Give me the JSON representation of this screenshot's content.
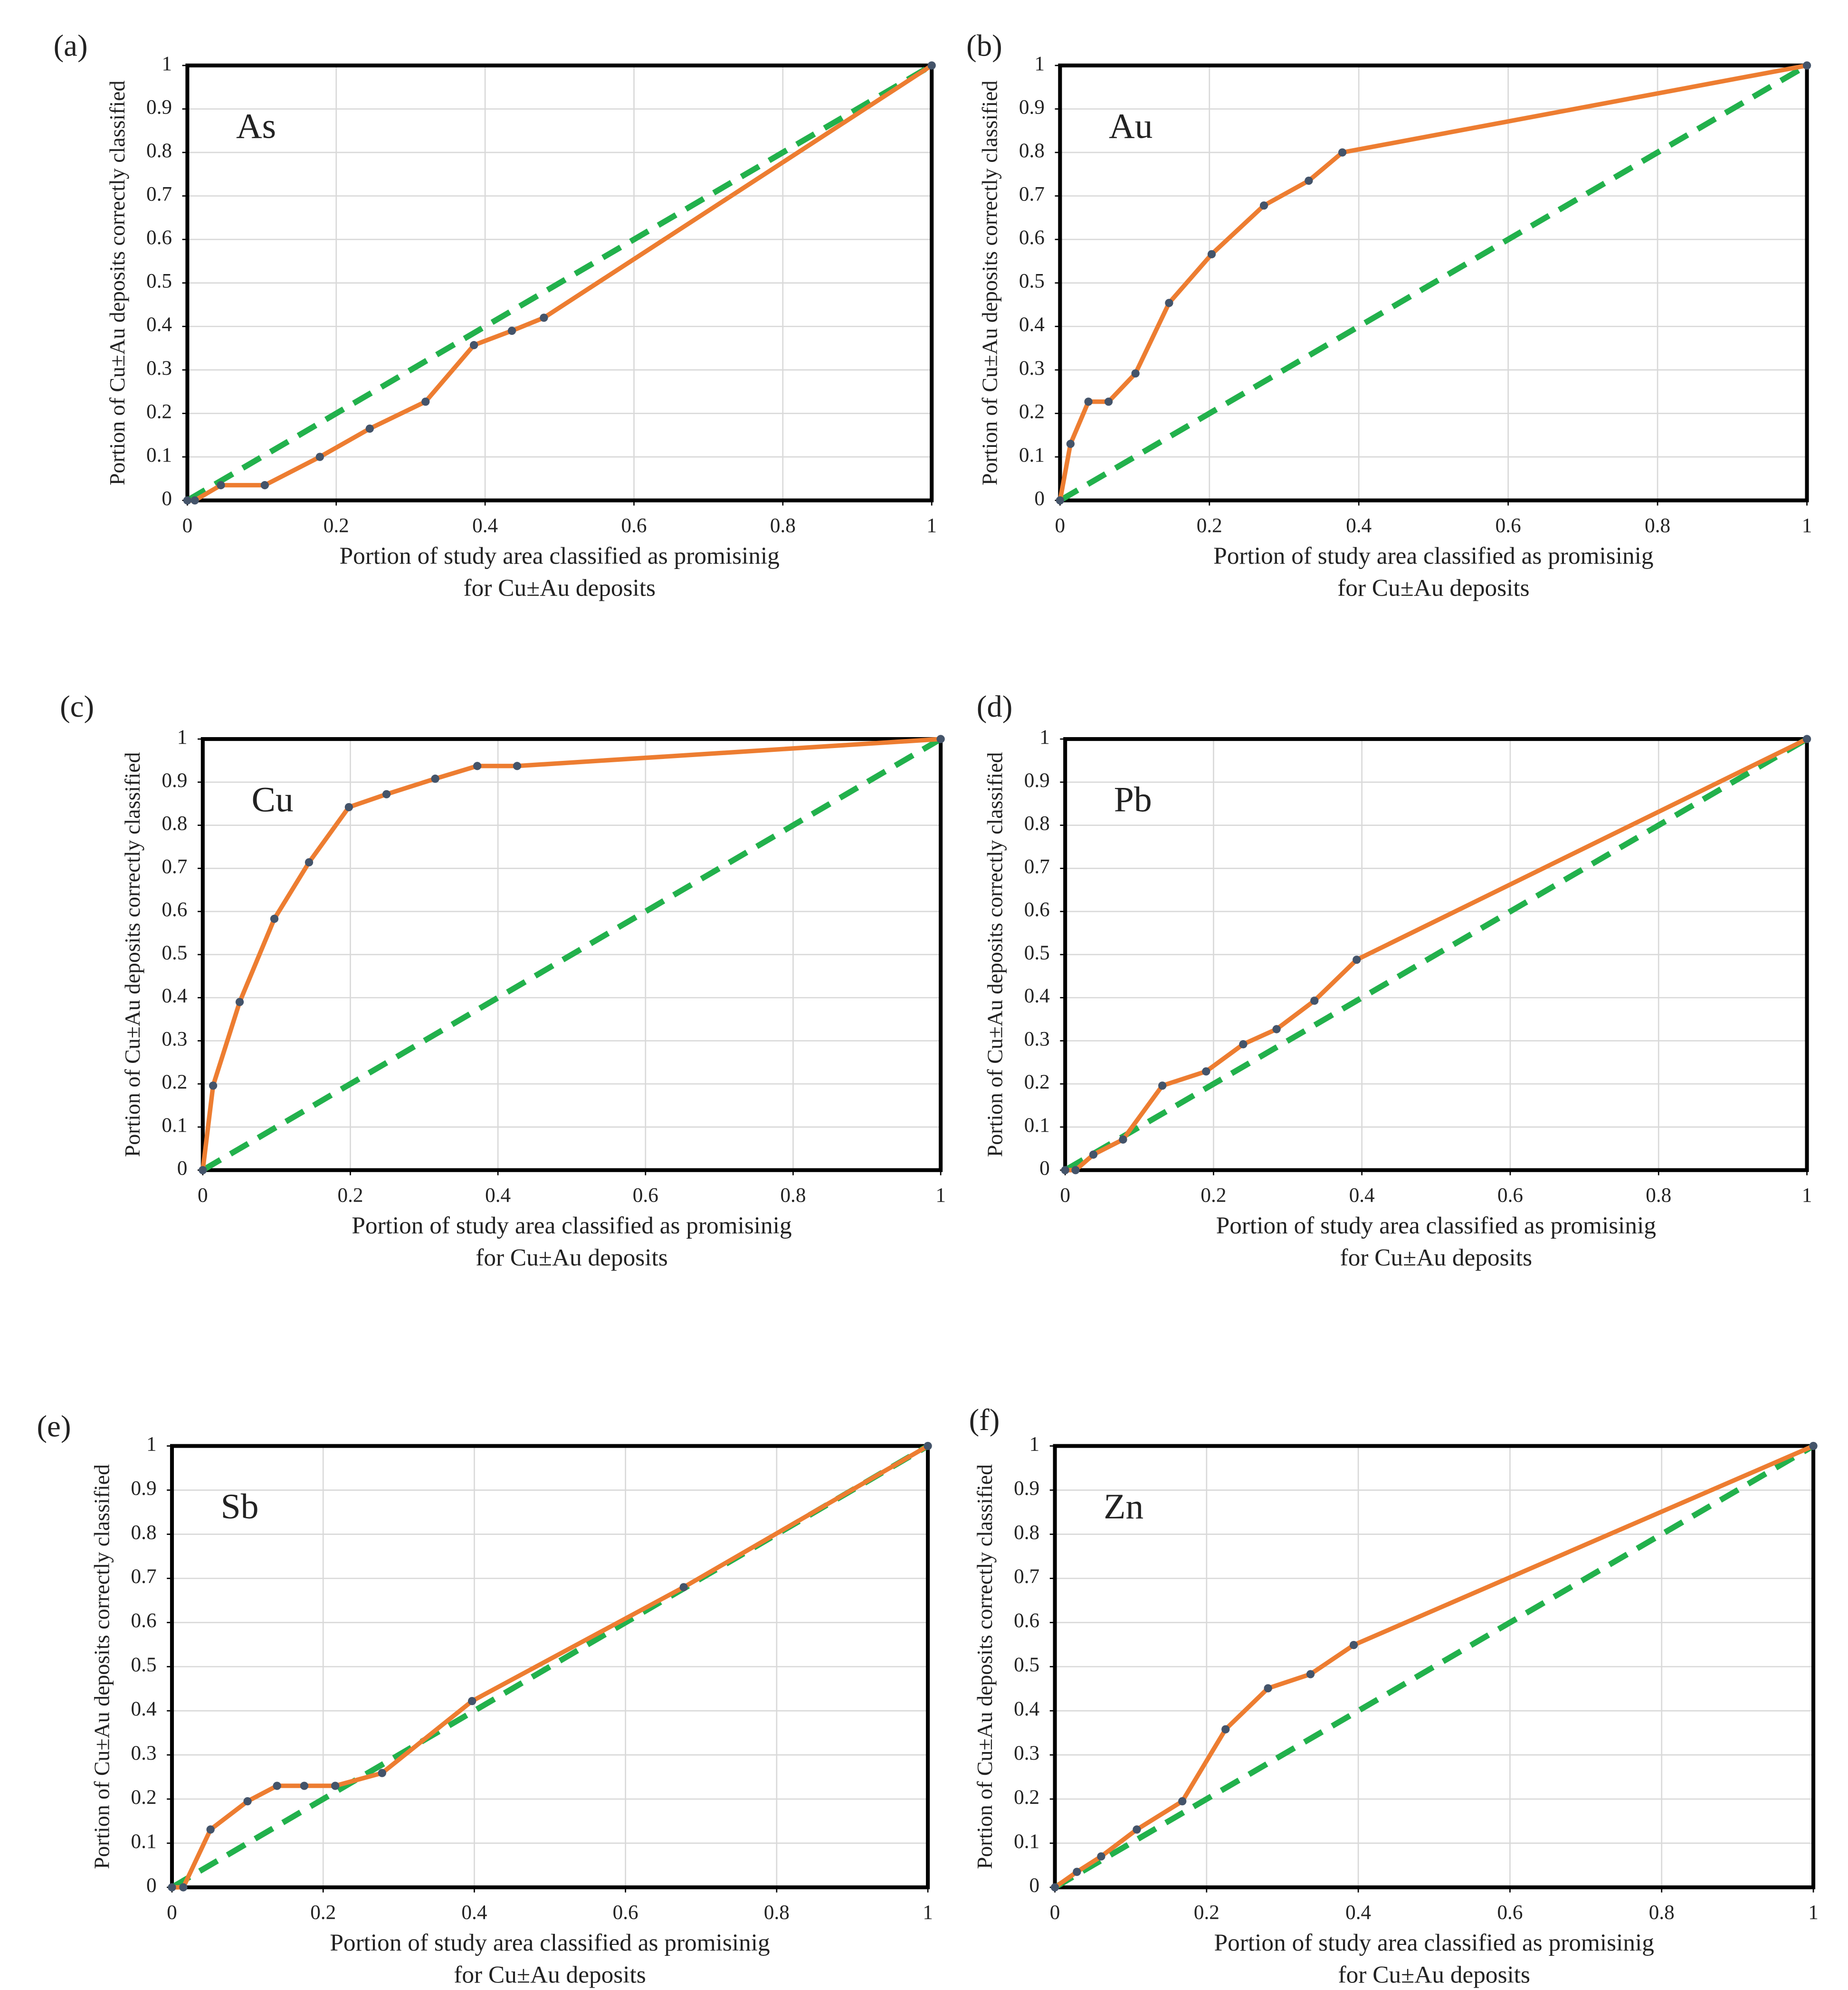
{
  "chart_data": [
    {
      "type": "line",
      "panel_label": "(a)",
      "title": "As",
      "x_label": [
        "Portion of study area classified as promisinig",
        "for Cu±Au deposits"
      ],
      "y_label": "Portion of Cu±Au deposits correctly classified",
      "xlim": [
        0,
        1
      ],
      "ylim": [
        0,
        1
      ],
      "xticks": [
        0,
        0.2,
        0.4,
        0.6,
        0.8,
        1
      ],
      "yticks": [
        0,
        0.1,
        0.2,
        0.3,
        0.4,
        0.5,
        0.6,
        0.7,
        0.8,
        0.9,
        1
      ],
      "grid": true,
      "series": [
        {
          "color": "#22b14c",
          "dashed": true,
          "x": [
            0,
            1
          ],
          "values": [
            0,
            1
          ]
        },
        {
          "color": "#ed7d31",
          "marker_color": "#44546a",
          "x": [
            0,
            0.01,
            0.045,
            0.104,
            0.178,
            0.245,
            0.32,
            0.385,
            0.436,
            0.479,
            1
          ],
          "values": [
            0,
            0,
            0.035,
            0.035,
            0.1,
            0.165,
            0.227,
            0.357,
            0.39,
            0.42,
            1
          ]
        }
      ]
    },
    {
      "type": "line",
      "panel_label": "(b)",
      "title": "Au",
      "x_label": [
        "Portion of study area classified as promisinig",
        "for Cu±Au deposits"
      ],
      "y_label": "Portion of Cu±Au deposits correctly classified",
      "xlim": [
        0,
        1
      ],
      "ylim": [
        0,
        1
      ],
      "xticks": [
        0,
        0.2,
        0.4,
        0.6,
        0.8,
        1
      ],
      "yticks": [
        0,
        0.1,
        0.2,
        0.3,
        0.4,
        0.5,
        0.6,
        0.7,
        0.8,
        0.9,
        1
      ],
      "grid": true,
      "series": [
        {
          "color": "#22b14c",
          "dashed": true,
          "x": [
            0,
            1
          ],
          "values": [
            0,
            1
          ]
        },
        {
          "color": "#ed7d31",
          "marker_color": "#44546a",
          "x": [
            0,
            0.014,
            0.038,
            0.065,
            0.101,
            0.146,
            0.203,
            0.273,
            0.333,
            0.378,
            1
          ],
          "values": [
            0,
            0.13,
            0.227,
            0.227,
            0.292,
            0.454,
            0.566,
            0.678,
            0.735,
            0.8,
            1
          ]
        }
      ]
    },
    {
      "type": "line",
      "panel_label": "(c)",
      "title": "Cu",
      "x_label": [
        "Portion of study area classified as promisinig",
        "for Cu±Au deposits"
      ],
      "y_label": "Portion of Cu±Au deposits correctly classified",
      "xlim": [
        0,
        1
      ],
      "ylim": [
        0,
        1
      ],
      "xticks": [
        0,
        0.2,
        0.4,
        0.6,
        0.8,
        1
      ],
      "yticks": [
        0,
        0.1,
        0.2,
        0.3,
        0.4,
        0.5,
        0.6,
        0.7,
        0.8,
        0.9,
        1
      ],
      "grid": true,
      "series": [
        {
          "color": "#22b14c",
          "dashed": true,
          "x": [
            0,
            1
          ],
          "values": [
            0,
            1
          ]
        },
        {
          "color": "#ed7d31",
          "marker_color": "#44546a",
          "x": [
            0,
            0.014,
            0.05,
            0.097,
            0.144,
            0.198,
            0.249,
            0.315,
            0.372,
            0.426,
            1
          ],
          "values": [
            0,
            0.196,
            0.39,
            0.583,
            0.714,
            0.842,
            0.872,
            0.908,
            0.9375,
            0.9375,
            1
          ]
        }
      ]
    },
    {
      "type": "line",
      "panel_label": "(d)",
      "title": "Pb",
      "x_label": [
        "Portion of study area classified as promisinig",
        "for Cu±Au deposits"
      ],
      "y_label": "Portion of Cu±Au deposits correctly classified",
      "xlim": [
        0,
        1
      ],
      "ylim": [
        0,
        1
      ],
      "xticks": [
        0,
        0.2,
        0.4,
        0.6,
        0.8,
        1
      ],
      "yticks": [
        0,
        0.1,
        0.2,
        0.3,
        0.4,
        0.5,
        0.6,
        0.7,
        0.8,
        0.9,
        1
      ],
      "grid": true,
      "series": [
        {
          "color": "#22b14c",
          "dashed": true,
          "x": [
            0,
            1
          ],
          "values": [
            0,
            1
          ]
        },
        {
          "color": "#ed7d31",
          "marker_color": "#44546a",
          "x": [
            0,
            0.014,
            0.038,
            0.078,
            0.131,
            0.19,
            0.24,
            0.285,
            0.336,
            0.393,
            1
          ],
          "values": [
            0,
            0,
            0.036,
            0.071,
            0.196,
            0.229,
            0.292,
            0.327,
            0.393,
            0.488,
            1
          ]
        }
      ]
    },
    {
      "type": "line",
      "panel_label": "(e)",
      "title": "Sb",
      "x_label": [
        "Portion of study area classified as promisinig",
        "for Cu±Au deposits"
      ],
      "y_label": "Portion of Cu±Au deposits correctly classified",
      "xlim": [
        0,
        1
      ],
      "ylim": [
        0,
        1
      ],
      "xticks": [
        0,
        0.2,
        0.4,
        0.6,
        0.8,
        1
      ],
      "yticks": [
        0,
        0.1,
        0.2,
        0.3,
        0.4,
        0.5,
        0.6,
        0.7,
        0.8,
        0.9,
        1
      ],
      "grid": true,
      "series": [
        {
          "color": "#22b14c",
          "dashed": true,
          "x": [
            0,
            1
          ],
          "values": [
            0,
            1
          ]
        },
        {
          "color": "#ed7d31",
          "marker_color": "#44546a",
          "x": [
            0,
            0.015,
            0.051,
            0.1,
            0.139,
            0.175,
            0.216,
            0.278,
            0.397,
            0.677,
            1
          ],
          "values": [
            0,
            0,
            0.131,
            0.195,
            0.23,
            0.23,
            0.23,
            0.259,
            0.422,
            0.68,
            1
          ]
        }
      ]
    },
    {
      "type": "line",
      "panel_label": "(f)",
      "title": "Zn",
      "x_label": [
        "Portion of study area classified as promisinig",
        "for Cu±Au deposits"
      ],
      "y_label": "Portion of Cu±Au deposits correctly classified",
      "xlim": [
        0,
        1
      ],
      "ylim": [
        0,
        1
      ],
      "xticks": [
        0,
        0.2,
        0.4,
        0.6,
        0.8,
        1
      ],
      "yticks": [
        0,
        0.1,
        0.2,
        0.3,
        0.4,
        0.5,
        0.6,
        0.7,
        0.8,
        0.9,
        1
      ],
      "grid": true,
      "series": [
        {
          "color": "#22b14c",
          "dashed": true,
          "x": [
            0,
            1
          ],
          "values": [
            0,
            1
          ]
        },
        {
          "color": "#ed7d31",
          "marker_color": "#44546a",
          "x": [
            0,
            0.029,
            0.061,
            0.108,
            0.168,
            0.225,
            0.281,
            0.337,
            0.394,
            1
          ],
          "values": [
            0,
            0.035,
            0.07,
            0.131,
            0.195,
            0.358,
            0.451,
            0.483,
            0.549,
            1
          ]
        }
      ]
    }
  ]
}
